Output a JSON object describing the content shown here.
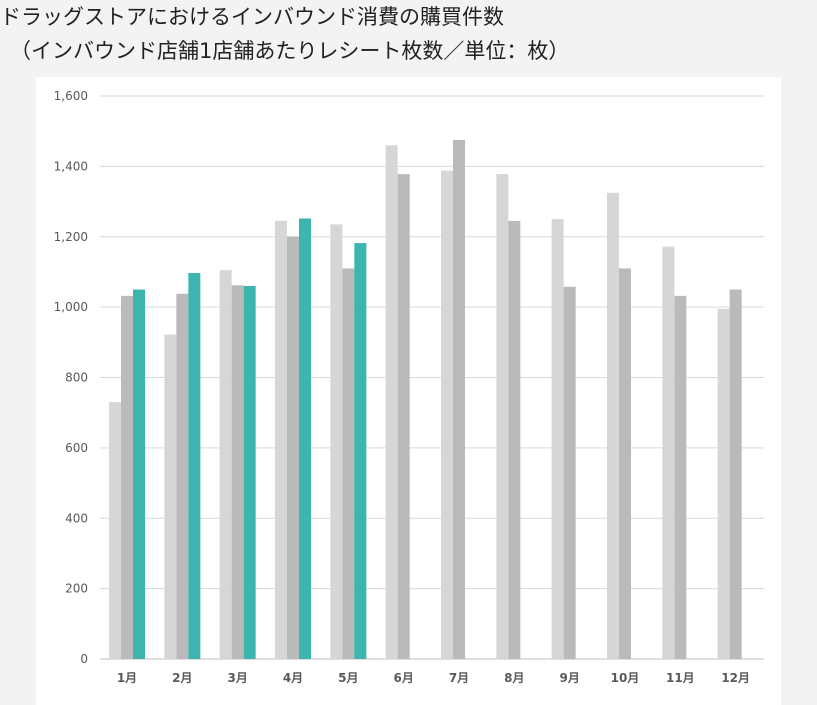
{
  "title": {
    "line1": "ドラッグストアにおけるインバウンド消費の購買件数",
    "line2": "（インバウンド店舗1店舗あたりレシート枚数／単位：枚）"
  },
  "colors": {
    "series1": "#d6d6d6",
    "series2": "#bababa",
    "series3": "#3bb5ae",
    "grid": "#d9d9d9",
    "axis": "#bfbfbf"
  },
  "chart_data": {
    "type": "bar",
    "title": "ドラッグストアにおけるインバウンド消費の購買件数（インバウンド店舗1店舗あたりレシート枚数／単位：枚）",
    "xlabel": "",
    "ylabel": "",
    "categories": [
      "1月",
      "2月",
      "3月",
      "4月",
      "5月",
      "6月",
      "7月",
      "8月",
      "9月",
      "10月",
      "11月",
      "12月"
    ],
    "ylim": [
      0,
      1600
    ],
    "yticks": [
      0,
      200,
      400,
      600,
      800,
      1000,
      1200,
      1400,
      1600
    ],
    "ytick_labels": [
      "0",
      "200",
      "400",
      "600",
      "800",
      "1,000",
      "1,200",
      "1,400",
      "1,600"
    ],
    "grid": true,
    "legend": "none",
    "series": [
      {
        "values": [
          730,
          922,
          1105,
          1245,
          1235,
          1460,
          1388,
          1378,
          1250,
          1325,
          1172,
          995
        ]
      },
      {
        "values": [
          1032,
          1038,
          1062,
          1200,
          1110,
          1378,
          1475,
          1245,
          1058,
          1110,
          1032,
          1050
        ]
      },
      {
        "values": [
          1050,
          1097,
          1060,
          1252,
          1182,
          null,
          null,
          null,
          null,
          null,
          null,
          null
        ]
      }
    ]
  }
}
